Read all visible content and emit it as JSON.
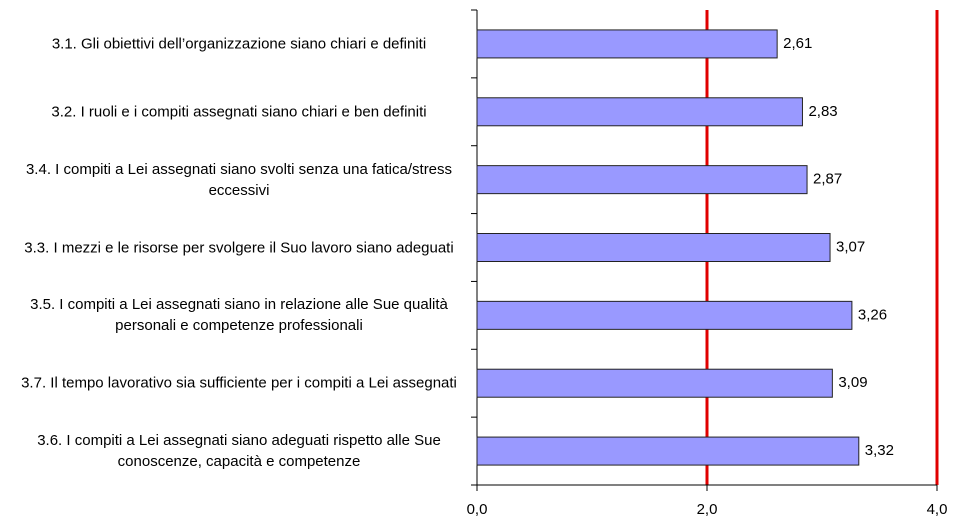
{
  "chart_data": {
    "type": "bar",
    "orientation": "horizontal",
    "categories": [
      "3.1.  Gli obiettivi dell’organizzazione siano chiari e definiti",
      "3.2.  I ruoli e i compiti assegnati siano chiari e ben definiti",
      "3.4.  I compiti a Lei assegnati siano svolti senza una fatica/stress eccessivi",
      "3.3.  I mezzi e le risorse per svolgere il Suo lavoro siano adeguati",
      "3.5.  I compiti a Lei assegnati siano in relazione alle Sue qualità personali e competenze professionali",
      "3.7.  Il tempo lavorativo sia sufficiente per i compiti a Lei assegnati",
      "3.6.  I compiti a Lei assegnati siano adeguati rispetto alle Sue conoscenze, capacità  e competenze"
    ],
    "values": [
      2.61,
      2.83,
      2.87,
      3.07,
      3.26,
      3.09,
      3.32
    ],
    "value_labels": [
      "2,61",
      "2,83",
      "2,87",
      "3,07",
      "3,26",
      "3,09",
      "3,32"
    ],
    "color": "#9999ff",
    "xlim": [
      0,
      4
    ],
    "xticks": [
      {
        "value": 0,
        "label": "0,0"
      },
      {
        "value": 2,
        "label": "2,0"
      },
      {
        "value": 4,
        "label": "4,0"
      }
    ],
    "reference_lines": [
      {
        "value": 2,
        "color": "#e00000"
      },
      {
        "value": 4,
        "color": "#e00000"
      }
    ],
    "grid": false
  }
}
